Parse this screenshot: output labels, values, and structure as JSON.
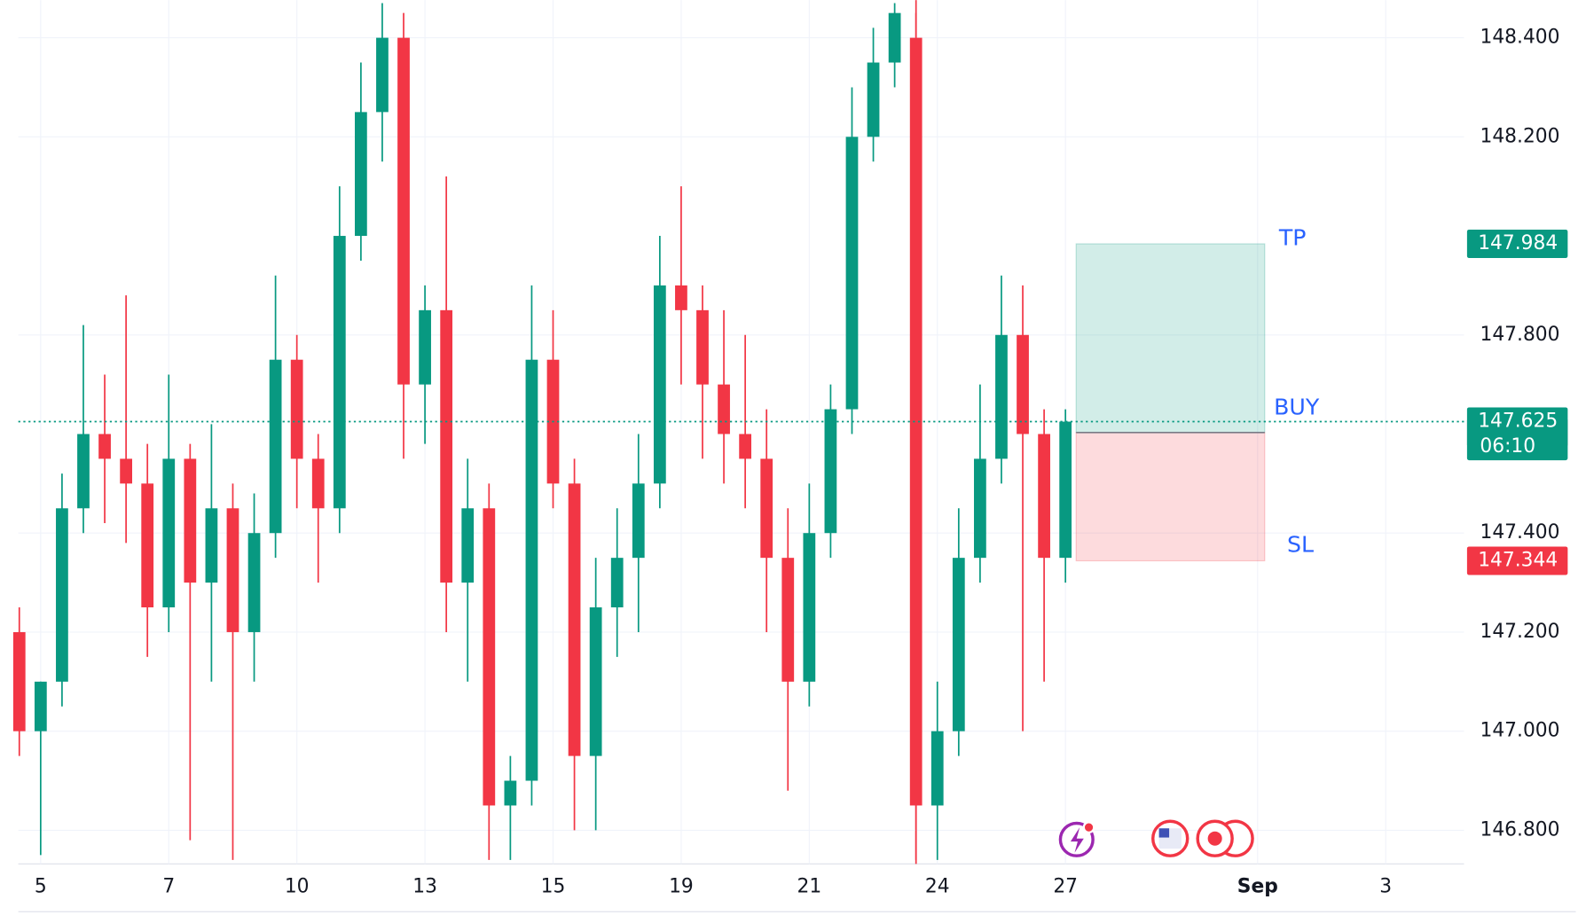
{
  "chart_data": {
    "type": "candlestick",
    "categories": [
      null,
      "5",
      null,
      null,
      null,
      null,
      null,
      "7",
      null,
      null,
      null,
      null,
      null,
      "10",
      null,
      null,
      null,
      null,
      null,
      "13",
      null,
      null,
      null,
      null,
      null,
      "15",
      null,
      null,
      null,
      null,
      null,
      "19",
      null,
      null,
      null,
      null,
      null,
      "21",
      null,
      null,
      null,
      null,
      null,
      "24",
      null,
      null,
      null,
      null,
      null,
      "27",
      null,
      null,
      null,
      null,
      null,
      null,
      null,
      null,
      "Sep",
      null,
      null,
      null,
      null,
      null,
      "3",
      null
    ],
    "open": [
      147.2,
      147.0,
      147.1,
      147.45,
      147.6,
      147.55,
      147.5,
      147.25,
      147.55,
      147.3,
      147.45,
      147.2,
      147.4,
      147.75,
      147.55,
      147.45,
      148.0,
      148.25,
      148.4,
      147.7,
      147.85,
      147.3,
      147.45,
      146.85,
      146.9,
      147.75,
      147.5,
      146.95,
      147.25,
      147.35,
      147.5,
      147.9,
      147.85,
      147.7,
      147.6,
      147.55,
      147.35,
      147.1,
      147.4,
      147.65,
      148.2,
      148.35,
      148.4,
      146.85,
      147.0,
      147.35,
      147.55,
      147.8,
      147.6,
      147.35,
      null,
      null,
      null,
      null,
      null,
      null,
      null,
      null,
      null,
      null,
      null,
      null,
      null,
      null,
      null,
      null
    ],
    "high": [
      147.25,
      147.1,
      147.52,
      147.82,
      147.72,
      147.88,
      147.58,
      147.72,
      147.58,
      147.62,
      147.5,
      147.48,
      147.92,
      147.8,
      147.6,
      148.1,
      148.35,
      148.47,
      148.45,
      147.9,
      148.12,
      147.55,
      147.5,
      146.95,
      147.9,
      147.85,
      147.55,
      147.35,
      147.45,
      147.6,
      148.0,
      148.1,
      147.9,
      147.85,
      147.8,
      147.65,
      147.45,
      147.5,
      147.7,
      148.3,
      148.42,
      148.47,
      148.45,
      147.1,
      147.45,
      147.7,
      147.92,
      147.9,
      147.65,
      147.65,
      null,
      null,
      null,
      null,
      null,
      null,
      null,
      null,
      null,
      null,
      null,
      null,
      null,
      null,
      null,
      null
    ],
    "low": [
      146.95,
      146.75,
      147.05,
      147.4,
      147.42,
      147.38,
      147.15,
      147.2,
      146.78,
      147.1,
      146.74,
      147.1,
      147.35,
      147.45,
      147.3,
      147.4,
      147.95,
      148.15,
      147.55,
      147.58,
      147.2,
      147.1,
      146.74,
      146.74,
      146.85,
      147.45,
      146.8,
      146.8,
      147.15,
      147.2,
      147.45,
      147.7,
      147.55,
      147.5,
      147.45,
      147.2,
      146.88,
      147.05,
      147.35,
      147.6,
      148.15,
      148.3,
      146.74,
      146.74,
      146.95,
      147.3,
      147.5,
      147.0,
      147.1,
      147.3,
      null,
      null,
      null,
      null,
      null,
      null,
      null,
      null,
      null,
      null,
      null,
      null,
      null,
      null,
      null,
      null
    ],
    "close": [
      147.0,
      147.1,
      147.45,
      147.6,
      147.55,
      147.5,
      147.25,
      147.55,
      147.3,
      147.45,
      147.2,
      147.4,
      147.75,
      147.55,
      147.45,
      148.0,
      148.25,
      148.4,
      147.7,
      147.85,
      147.3,
      147.45,
      146.85,
      146.9,
      147.75,
      147.5,
      146.95,
      147.25,
      147.35,
      147.5,
      147.9,
      147.85,
      147.7,
      147.6,
      147.55,
      147.35,
      147.1,
      147.4,
      147.65,
      148.2,
      148.35,
      148.45,
      146.85,
      147.0,
      147.35,
      147.55,
      147.8,
      147.6,
      147.35,
      147.625,
      null,
      null,
      null,
      null,
      null,
      null,
      null,
      null,
      null,
      null,
      null,
      null,
      null,
      null,
      null,
      null
    ],
    "up_color": "#089981",
    "down_color": "#f23645",
    "ylim": [
      146.732,
      148.476
    ],
    "yticks": [
      {
        "value": 146.8,
        "label": "146.800"
      },
      {
        "value": 147.0,
        "label": "147.000"
      },
      {
        "value": 147.2,
        "label": "147.200"
      },
      {
        "value": 147.4,
        "label": "147.400"
      },
      {
        "value": 147.8,
        "label": "147.800"
      },
      {
        "value": 148.2,
        "label": "148.200"
      },
      {
        "value": 148.4,
        "label": "148.400"
      }
    ],
    "grid": true,
    "last_price": 147.625,
    "countdown": "06:10",
    "entry": 147.603,
    "take_profit": 147.984,
    "stop_loss": 147.344,
    "tp_label": "TP",
    "entry_label": "BUY",
    "sl_label": "SL"
  }
}
